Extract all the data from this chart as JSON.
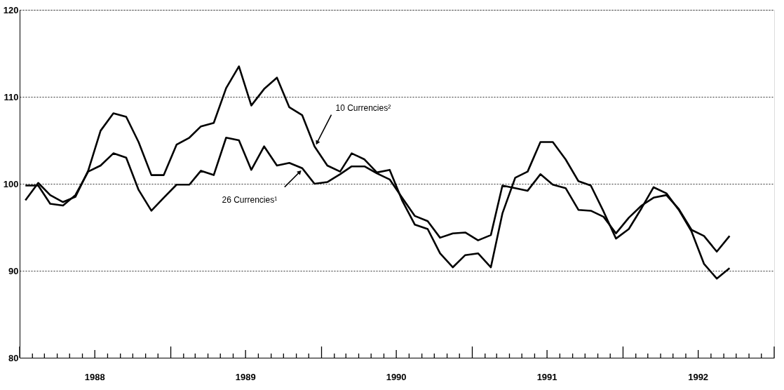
{
  "chart_data": {
    "type": "line",
    "x": [
      "1988-01-15",
      "1988-02-15",
      "1988-03-15",
      "1988-04-15",
      "1988-05-15",
      "1988-06-15",
      "1988-07-15",
      "1988-08-15",
      "1988-09-15",
      "1988-10-15",
      "1988-11-15",
      "1988-12-15",
      "1989-01-15",
      "1989-02-15",
      "1989-03-15",
      "1989-04-15",
      "1989-05-15",
      "1989-06-15",
      "1989-07-15",
      "1989-08-15",
      "1989-09-15",
      "1989-10-15",
      "1989-11-15",
      "1989-12-15",
      "1990-01-15",
      "1990-02-15",
      "1990-03-15",
      "1990-04-15",
      "1990-05-15",
      "1990-06-15",
      "1990-07-15",
      "1990-08-15",
      "1990-09-15",
      "1990-10-15",
      "1990-11-15",
      "1990-12-15",
      "1991-01-15",
      "1991-02-15",
      "1991-03-15",
      "1991-04-15",
      "1991-05-15",
      "1991-06-15",
      "1991-07-15",
      "1991-08-15",
      "1991-09-15",
      "1991-10-15",
      "1991-11-15",
      "1991-12-15",
      "1992-01-15",
      "1992-02-15",
      "1992-03-15",
      "1992-04-15",
      "1992-05-15",
      "1992-06-15",
      "1992-07-15",
      "1992-08-15",
      "1992-09-15"
    ],
    "series": [
      {
        "color": "#000000",
        "values": [
          98.1,
          100.1,
          98.7,
          97.9,
          98.5,
          101.5,
          106.1,
          108.1,
          107.7,
          104.8,
          101.0,
          101.0,
          104.5,
          105.3,
          106.6,
          107.0,
          111.0,
          113.5,
          109.0,
          110.9,
          112.2,
          108.8,
          107.9,
          104.3,
          102.1,
          101.4,
          103.5,
          102.8,
          101.3,
          101.6,
          98.1,
          95.3,
          94.8,
          92.0,
          90.4,
          91.8,
          92.0,
          90.4,
          96.6,
          100.7,
          101.4,
          104.8,
          104.8,
          102.8,
          100.3,
          99.8,
          96.8,
          93.7,
          94.8,
          97.2,
          99.6,
          98.9,
          97.0,
          94.5,
          90.8,
          89.1,
          90.3
        ]
      },
      {
        "color": "#000000",
        "values": [
          99.8,
          99.8,
          97.7,
          97.5,
          98.7,
          101.4,
          102.1,
          103.5,
          103.0,
          99.3,
          96.9,
          98.4,
          99.9,
          99.9,
          101.5,
          101.0,
          105.3,
          105.0,
          101.6,
          104.3,
          102.1,
          102.4,
          101.8,
          100.0,
          100.2,
          101.1,
          102.0,
          102.0,
          101.2,
          100.5,
          98.4,
          96.3,
          95.7,
          93.8,
          94.3,
          94.4,
          93.5,
          94.1,
          99.8,
          99.5,
          99.2,
          101.1,
          99.9,
          99.5,
          97.0,
          96.9,
          96.2,
          94.3,
          96.1,
          97.5,
          98.4,
          98.7,
          97.1,
          94.7,
          94.0,
          92.2,
          94.0
        ]
      }
    ],
    "annotations": [
      {
        "text": "10 Currencies²",
        "x": "1989-12-15",
        "y": 104.3
      },
      {
        "text": "26 Currencies¹",
        "x": "1989-11-15",
        "y": 101.8
      }
    ],
    "xlim": [
      "1988-01-01",
      "1993-01-01"
    ],
    "xticks": [
      {
        "value": "1988-01-01",
        "label": null
      },
      {
        "value": "1988-02-01",
        "label": null
      },
      {
        "value": "1988-03-01",
        "label": null
      },
      {
        "value": "1988-04-01",
        "label": null
      },
      {
        "value": "1988-05-01",
        "label": null
      },
      {
        "value": "1988-06-01",
        "label": null
      },
      {
        "value": "1988-07-01",
        "label": "1988"
      },
      {
        "value": "1988-08-01",
        "label": null
      },
      {
        "value": "1988-09-01",
        "label": null
      },
      {
        "value": "1988-10-01",
        "label": null
      },
      {
        "value": "1988-11-01",
        "label": null
      },
      {
        "value": "1988-12-01",
        "label": null
      },
      {
        "value": "1989-01-01",
        "label": null
      },
      {
        "value": "1989-02-01",
        "label": null
      },
      {
        "value": "1989-03-01",
        "label": null
      },
      {
        "value": "1989-04-01",
        "label": null
      },
      {
        "value": "1989-05-01",
        "label": null
      },
      {
        "value": "1989-06-01",
        "label": null
      },
      {
        "value": "1989-07-01",
        "label": "1989"
      },
      {
        "value": "1989-08-01",
        "label": null
      },
      {
        "value": "1989-09-01",
        "label": null
      },
      {
        "value": "1989-10-01",
        "label": null
      },
      {
        "value": "1989-11-01",
        "label": null
      },
      {
        "value": "1989-12-01",
        "label": null
      },
      {
        "value": "1990-01-01",
        "label": null
      },
      {
        "value": "1990-02-01",
        "label": null
      },
      {
        "value": "1990-03-01",
        "label": null
      },
      {
        "value": "1990-04-01",
        "label": null
      },
      {
        "value": "1990-05-01",
        "label": null
      },
      {
        "value": "1990-06-01",
        "label": null
      },
      {
        "value": "1990-07-01",
        "label": "1990"
      },
      {
        "value": "1990-08-01",
        "label": null
      },
      {
        "value": "1990-09-01",
        "label": null
      },
      {
        "value": "1990-10-01",
        "label": null
      },
      {
        "value": "1990-11-01",
        "label": null
      },
      {
        "value": "1990-12-01",
        "label": null
      },
      {
        "value": "1991-01-01",
        "label": null
      },
      {
        "value": "1991-02-01",
        "label": null
      },
      {
        "value": "1991-03-01",
        "label": null
      },
      {
        "value": "1991-04-01",
        "label": null
      },
      {
        "value": "1991-05-01",
        "label": null
      },
      {
        "value": "1991-06-01",
        "label": null
      },
      {
        "value": "1991-07-01",
        "label": "1991"
      },
      {
        "value": "1991-08-01",
        "label": null
      },
      {
        "value": "1991-09-01",
        "label": null
      },
      {
        "value": "1991-10-01",
        "label": null
      },
      {
        "value": "1991-11-01",
        "label": null
      },
      {
        "value": "1991-12-01",
        "label": null
      },
      {
        "value": "1992-01-01",
        "label": null
      },
      {
        "value": "1992-02-01",
        "label": null
      },
      {
        "value": "1992-03-01",
        "label": null
      },
      {
        "value": "1992-04-01",
        "label": null
      },
      {
        "value": "1992-05-01",
        "label": null
      },
      {
        "value": "1992-06-01",
        "label": null
      },
      {
        "value": "1992-07-01",
        "label": "1992"
      },
      {
        "value": "1992-08-01",
        "label": null
      },
      {
        "value": "1992-09-01",
        "label": null
      },
      {
        "value": "1992-10-01",
        "label": null
      },
      {
        "value": "1992-11-01",
        "label": null
      },
      {
        "value": "1992-12-01",
        "label": null
      },
      {
        "value": "1993-01-01",
        "label": null
      }
    ],
    "ylim": [
      80,
      120
    ],
    "yticks": [
      80,
      90,
      100,
      110,
      120
    ],
    "grid": "y",
    "legend": false,
    "line_style": "solid",
    "marker": "none"
  }
}
